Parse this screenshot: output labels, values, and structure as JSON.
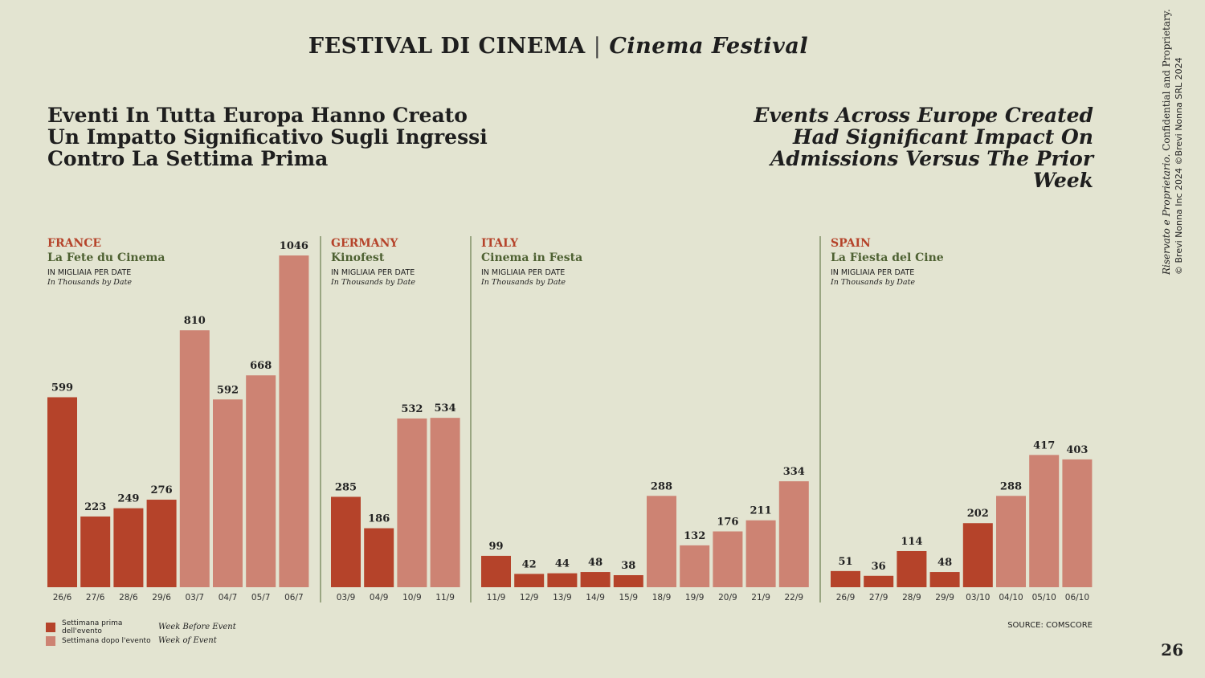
{
  "header": {
    "title_it": "FESTIVAL DI CINEMA",
    "separator": "|",
    "title_en": "Cinema Festival"
  },
  "headline": {
    "it": "Eventi In Tutta Europa Hanno Creato Un Impatto Significativo Sugli Ingressi Contro La Settima Prima",
    "en": "Events Across Europe Created Had Significant Impact On Admissions Versus The Prior Week"
  },
  "sidebar": {
    "line1_italic": "Riservato e Proprietario.",
    "line1_rest": " Confidential and Proprietary.",
    "line2": "© Brevi Nonna Inc 2024 ©Brevi Nonna SRL 2024"
  },
  "legend": {
    "before": {
      "it": "Settimana prima dell'evento",
      "en": "Week Before Event"
    },
    "after": {
      "it": "Settimana dopo l'evento",
      "en": "Week of Event"
    }
  },
  "source": "SOURCE: COMSCORE",
  "page_number": "26",
  "colors": {
    "before": "#b5432a",
    "after": "#cd8373",
    "divider": "#6b7e4e",
    "background": "#e3e4d1"
  },
  "chart_data": [
    {
      "type": "bar",
      "country": "FRANCE",
      "event": "La Fete du Cinema",
      "unit_it": "IN MIGLIAIA PER DATE",
      "unit_en": "In Thousands by Date",
      "categories": [
        "26/6",
        "27/6",
        "28/6",
        "29/6",
        "03/7",
        "04/7",
        "05/7",
        "06/7"
      ],
      "values": [
        599,
        223,
        249,
        276,
        810,
        592,
        668,
        1046
      ],
      "groups": [
        "before",
        "before",
        "before",
        "before",
        "after",
        "after",
        "after",
        "after"
      ]
    },
    {
      "type": "bar",
      "country": "GERMANY",
      "event": "Kinofest",
      "unit_it": "IN MIGLIAIA PER DATE",
      "unit_en": "In Thousands by Date",
      "categories": [
        "03/9",
        "04/9",
        "10/9",
        "11/9"
      ],
      "values": [
        285,
        186,
        532,
        534
      ],
      "groups": [
        "before",
        "before",
        "after",
        "after"
      ]
    },
    {
      "type": "bar",
      "country": "ITALY",
      "event": "Cinema in Festa",
      "unit_it": "IN MIGLIAIA PER DATE",
      "unit_en": "In Thousands by Date",
      "categories": [
        "11/9",
        "12/9",
        "13/9",
        "14/9",
        "15/9",
        "18/9",
        "19/9",
        "20/9",
        "21/9",
        "22/9"
      ],
      "values": [
        99,
        42,
        44,
        48,
        38,
        288,
        132,
        176,
        211,
        334
      ],
      "groups": [
        "before",
        "before",
        "before",
        "before",
        "before",
        "after",
        "after",
        "after",
        "after",
        "after"
      ]
    },
    {
      "type": "bar",
      "country": "SPAIN",
      "event": "La Fiesta del Cine",
      "unit_it": "IN MIGLIAIA PER DATE",
      "unit_en": "In Thousands by Date",
      "categories": [
        "26/9",
        "27/9",
        "28/9",
        "29/9",
        "03/10",
        "04/10",
        "05/10",
        "06/10"
      ],
      "values": [
        51,
        36,
        114,
        48,
        202,
        288,
        417,
        403
      ],
      "groups": [
        "before",
        "before",
        "before",
        "before",
        "before",
        "after",
        "after",
        "after"
      ]
    }
  ]
}
